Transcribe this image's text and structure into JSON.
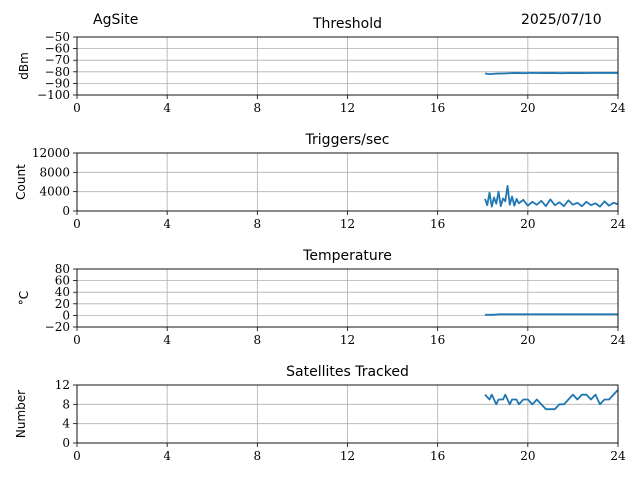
{
  "header": {
    "site": "AgSite",
    "date": "2025/07/10"
  },
  "style": {
    "line_color": "#1f77b4",
    "grid_color": "#b0b0b0"
  },
  "chart_data": [
    {
      "type": "line",
      "title": "Threshold",
      "xlabel": "",
      "ylabel": "dBm",
      "xlim": [
        0,
        24
      ],
      "ylim": [
        -100,
        -50
      ],
      "xticks": [
        "0",
        "4",
        "8",
        "12",
        "16",
        "20",
        "24"
      ],
      "yticks": [
        "−100",
        "−90",
        "−80",
        "−70",
        "−60",
        "−50"
      ],
      "grid": true,
      "series": [
        {
          "x": [
            18.1,
            18.3,
            18.6,
            19.0,
            19.4,
            19.8,
            20.2,
            20.6,
            21.0,
            21.5,
            22.0,
            22.5,
            23.0,
            23.5,
            24.0
          ],
          "y": [
            -81.5,
            -82.0,
            -81.6,
            -81.4,
            -81.0,
            -81.2,
            -80.9,
            -81.1,
            -81.0,
            -81.2,
            -81.0,
            -81.1,
            -80.9,
            -81.0,
            -81.0
          ]
        }
      ]
    },
    {
      "type": "line",
      "title": "Triggers/sec",
      "xlabel": "",
      "ylabel": "Count",
      "xlim": [
        0,
        24
      ],
      "ylim": [
        0,
        12000
      ],
      "xticks": [
        "0",
        "4",
        "8",
        "12",
        "16",
        "20",
        "24"
      ],
      "yticks": [
        "0",
        "4000",
        "8000",
        "12000"
      ],
      "grid": true,
      "series": [
        {
          "x": [
            18.1,
            18.2,
            18.3,
            18.4,
            18.5,
            18.6,
            18.7,
            18.8,
            18.9,
            19.0,
            19.1,
            19.2,
            19.3,
            19.4,
            19.5,
            19.6,
            19.8,
            20.0,
            20.2,
            20.4,
            20.6,
            20.8,
            21.0,
            21.2,
            21.4,
            21.6,
            21.8,
            22.0,
            22.2,
            22.4,
            22.6,
            22.8,
            23.0,
            23.2,
            23.4,
            23.6,
            23.8,
            24.0
          ],
          "y": [
            2500,
            1200,
            3800,
            900,
            2800,
            1500,
            4000,
            1000,
            2600,
            2000,
            5200,
            1300,
            3000,
            1100,
            2500,
            1600,
            2300,
            1100,
            1900,
            1300,
            2100,
            1000,
            2400,
            1200,
            1800,
            1000,
            2200,
            1300,
            1700,
            1000,
            1900,
            1200,
            1600,
            900,
            2000,
            1100,
            1700,
            1400
          ]
        }
      ]
    },
    {
      "type": "line",
      "title": "Temperature",
      "xlabel": "",
      "ylabel": "°C",
      "xlim": [
        0,
        24
      ],
      "ylim": [
        -20,
        80
      ],
      "xticks": [
        "0",
        "4",
        "8",
        "12",
        "16",
        "20",
        "24"
      ],
      "yticks": [
        "−20",
        "0",
        "20",
        "40",
        "60",
        "80"
      ],
      "grid": true,
      "series": [
        {
          "x": [
            18.1,
            18.5,
            18.7,
            19.0,
            20.0,
            21.0,
            22.0,
            23.0,
            24.0
          ],
          "y": [
            1,
            1,
            2,
            2,
            2,
            2,
            2,
            2,
            2
          ]
        }
      ]
    },
    {
      "type": "line",
      "title": "Satellites Tracked",
      "xlabel": "",
      "ylabel": "Number",
      "xlim": [
        0,
        24
      ],
      "ylim": [
        0,
        12
      ],
      "xticks": [
        "0",
        "4",
        "8",
        "12",
        "16",
        "20",
        "24"
      ],
      "yticks": [
        "0",
        "4",
        "8",
        "12"
      ],
      "grid": true,
      "series": [
        {
          "x": [
            18.1,
            18.3,
            18.4,
            18.6,
            18.7,
            18.9,
            19.0,
            19.2,
            19.3,
            19.5,
            19.6,
            19.8,
            20.0,
            20.2,
            20.4,
            20.6,
            20.8,
            21.0,
            21.2,
            21.4,
            21.6,
            21.8,
            22.0,
            22.2,
            22.4,
            22.6,
            22.8,
            23.0,
            23.2,
            23.4,
            23.6,
            23.8,
            24.0
          ],
          "y": [
            10,
            9,
            10,
            8,
            9,
            9,
            10,
            8,
            9,
            9,
            8,
            9,
            9,
            8,
            9,
            8,
            7,
            7,
            7,
            8,
            8,
            9,
            10,
            9,
            10,
            10,
            9,
            10,
            8,
            9,
            9,
            10,
            11
          ]
        }
      ]
    }
  ]
}
